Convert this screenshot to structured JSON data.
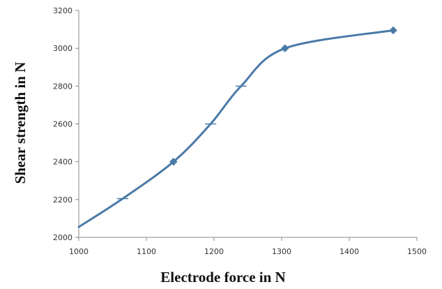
{
  "chart_data": {
    "type": "line",
    "title": "",
    "xlabel": "Electrode force in N",
    "ylabel": "Shear strength in N",
    "xlim": [
      1000,
      1500
    ],
    "ylim": [
      2000,
      3200
    ],
    "xticks": [
      1000,
      1100,
      1200,
      1300,
      1400,
      1500
    ],
    "yticks": [
      2000,
      2200,
      2400,
      2600,
      2800,
      3000,
      3200
    ],
    "grid": false,
    "smooth": true,
    "series": [
      {
        "color": "#4a7aa8",
        "x": [
          1000,
          1065,
          1140,
          1195,
          1240,
          1305,
          1465
        ],
        "y": [
          2055,
          2205,
          2400,
          2600,
          2800,
          3000,
          3095
        ],
        "markers": [
          {
            "x": 1140,
            "y": 2400,
            "shape": "diamond"
          },
          {
            "x": 1305,
            "y": 3000,
            "shape": "diamond"
          },
          {
            "x": 1465,
            "y": 3095,
            "shape": "diamond"
          },
          {
            "x": 1065,
            "y": 2205,
            "shape": "tick"
          },
          {
            "x": 1195,
            "y": 2600,
            "shape": "tick"
          },
          {
            "x": 1240,
            "y": 2800,
            "shape": "tick"
          }
        ]
      }
    ]
  }
}
